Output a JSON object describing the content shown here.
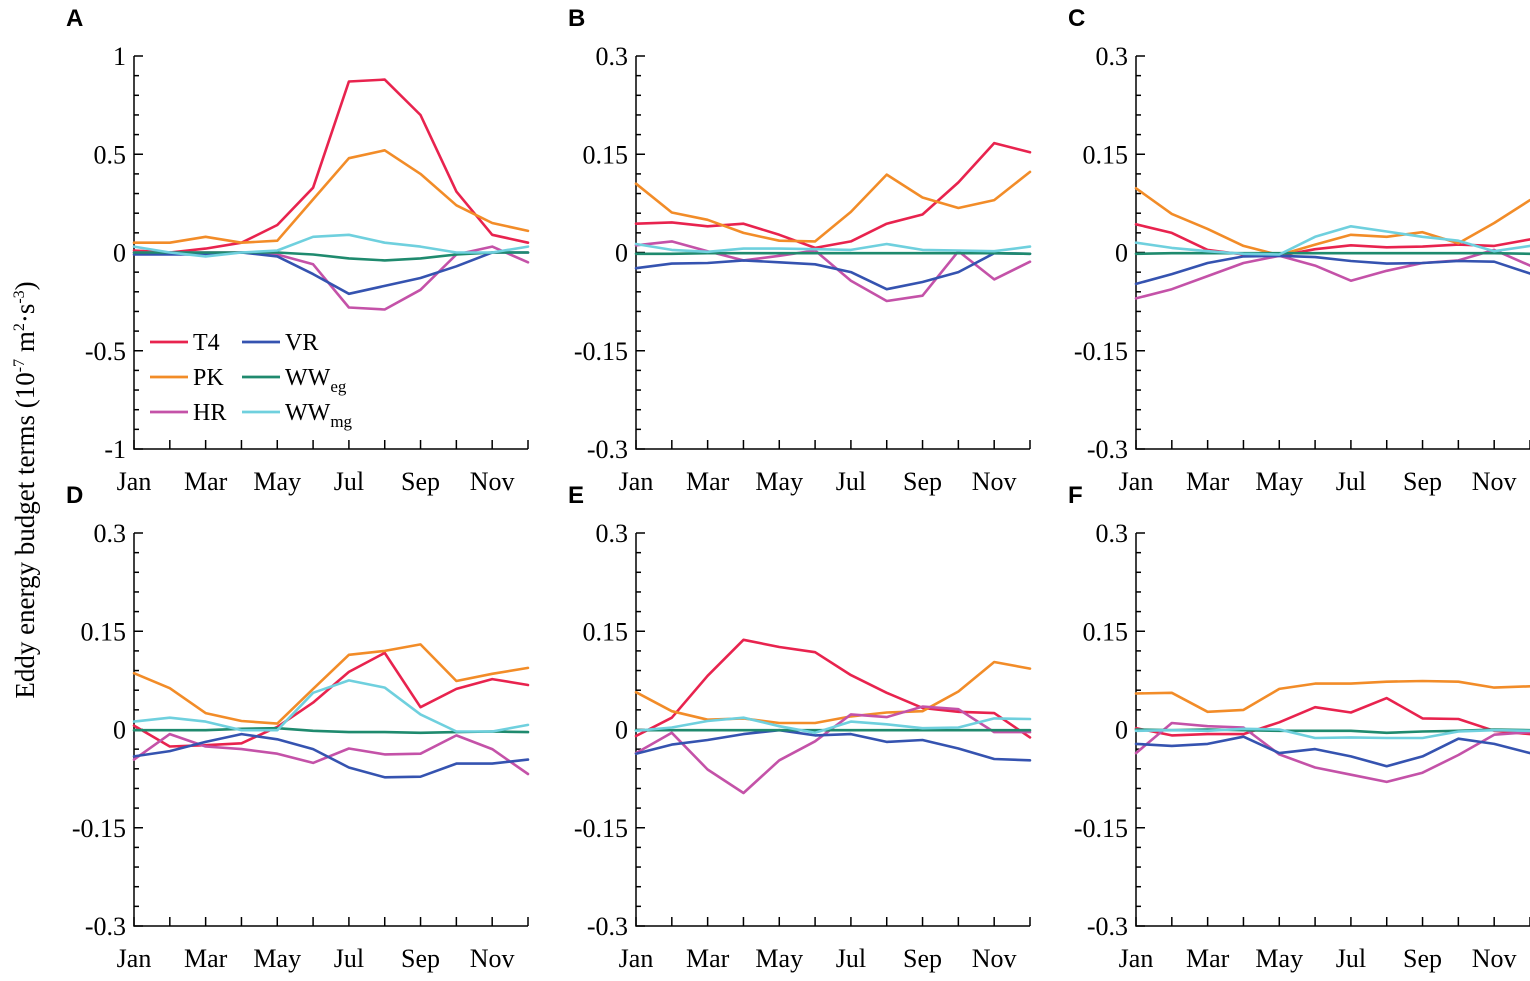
{
  "ylabel": "Eddy energy budget terms",
  "ylabel_unit": "(10-7 m2·s-3)",
  "ylabel_parts": {
    "prefix": "(10",
    "sup1": "-7",
    "mid": " m",
    "sup2": "2",
    "dot": "·s",
    "sup3": "-3",
    "suffix": ")"
  },
  "colors": {
    "T4": "#e8234e",
    "PK": "#f28c28",
    "HR": "#c452a8",
    "VR": "#3553b0",
    "WWeg": "#1f8a6e",
    "WWmg": "#6fd0de"
  },
  "legend": [
    {
      "key": "T4",
      "label": "T4",
      "sub": ""
    },
    {
      "key": "PK",
      "label": "PK",
      "sub": ""
    },
    {
      "key": "HR",
      "label": "HR",
      "sub": ""
    },
    {
      "key": "VR",
      "label": "VR",
      "sub": ""
    },
    {
      "key": "WWeg",
      "label": "WW",
      "sub": "eg"
    },
    {
      "key": "WWmg",
      "label": "WW",
      "sub": "mg"
    }
  ],
  "chart_data": [
    {
      "panel": "A",
      "type": "line",
      "x": [
        "Jan",
        "Feb",
        "Mar",
        "Apr",
        "May",
        "Jun",
        "Jul",
        "Aug",
        "Sep",
        "Oct",
        "Nov",
        "Dec"
      ],
      "xtick_labels": [
        "Jan",
        "Mar",
        "May",
        "Jul",
        "Sep",
        "Nov"
      ],
      "ylim": [
        -1,
        1
      ],
      "yticks": [
        "1",
        "0.5",
        "0",
        "-0.5",
        "-1"
      ],
      "series": [
        {
          "name": "T4",
          "values": [
            0.01,
            0.0,
            0.02,
            0.05,
            0.14,
            0.33,
            0.87,
            0.88,
            0.7,
            0.31,
            0.09,
            0.05
          ]
        },
        {
          "name": "PK",
          "values": [
            0.05,
            0.05,
            0.08,
            0.05,
            0.06,
            0.27,
            0.48,
            0.52,
            0.4,
            0.24,
            0.15,
            0.11
          ]
        },
        {
          "name": "HR",
          "values": [
            0.0,
            0.0,
            0.0,
            0.0,
            -0.01,
            -0.06,
            -0.28,
            -0.29,
            -0.19,
            -0.01,
            0.03,
            -0.05
          ]
        },
        {
          "name": "VR",
          "values": [
            -0.01,
            -0.01,
            -0.01,
            0.0,
            -0.02,
            -0.11,
            -0.21,
            -0.17,
            -0.13,
            -0.07,
            0.0,
            0.0
          ]
        },
        {
          "name": "WWeg",
          "values": [
            0.0,
            0.0,
            0.0,
            0.0,
            0.0,
            -0.01,
            -0.03,
            -0.04,
            -0.03,
            -0.01,
            0.0,
            0.0
          ]
        },
        {
          "name": "WWmg",
          "values": [
            0.03,
            0.0,
            -0.02,
            0.0,
            0.01,
            0.08,
            0.09,
            0.05,
            0.03,
            0.0,
            0.0,
            0.03
          ]
        }
      ]
    },
    {
      "panel": "B",
      "type": "line",
      "x": [
        "Jan",
        "Feb",
        "Mar",
        "Apr",
        "May",
        "Jun",
        "Jul",
        "Aug",
        "Sep",
        "Oct",
        "Nov",
        "Dec"
      ],
      "xtick_labels": [
        "Jan",
        "Mar",
        "May",
        "Jul",
        "Sep",
        "Nov"
      ],
      "ylim": [
        -0.3,
        0.3
      ],
      "yticks": [
        "0.3",
        "0.15",
        "0",
        "-0.15",
        "-0.3"
      ],
      "series": [
        {
          "name": "T4",
          "values": [
            0.044,
            0.046,
            0.04,
            0.044,
            0.027,
            0.007,
            0.017,
            0.044,
            0.058,
            0.107,
            0.167,
            0.153
          ]
        },
        {
          "name": "PK",
          "values": [
            0.105,
            0.061,
            0.05,
            0.03,
            0.018,
            0.017,
            0.062,
            0.119,
            0.084,
            0.068,
            0.08,
            0.123
          ]
        },
        {
          "name": "HR",
          "values": [
            0.011,
            0.017,
            0.002,
            -0.012,
            -0.005,
            0.003,
            -0.043,
            -0.074,
            -0.066,
            0.002,
            -0.041,
            -0.014
          ]
        },
        {
          "name": "VR",
          "values": [
            -0.024,
            -0.017,
            -0.016,
            -0.012,
            -0.015,
            -0.018,
            -0.03,
            -0.056,
            -0.045,
            -0.03,
            -0.001,
            -0.002
          ]
        },
        {
          "name": "WWeg",
          "values": [
            -0.002,
            -0.002,
            -0.001,
            -0.001,
            -0.001,
            -0.001,
            -0.001,
            -0.001,
            -0.001,
            -0.001,
            -0.001,
            -0.002
          ]
        },
        {
          "name": "WWmg",
          "values": [
            0.013,
            0.004,
            0.001,
            0.006,
            0.006,
            0.005,
            0.004,
            0.013,
            0.004,
            0.003,
            0.002,
            0.009
          ]
        }
      ]
    },
    {
      "panel": "C",
      "type": "line",
      "x": [
        "Jan",
        "Feb",
        "Mar",
        "Apr",
        "May",
        "Jun",
        "Jul",
        "Aug",
        "Sep",
        "Oct",
        "Nov",
        "Dec"
      ],
      "xtick_labels": [
        "Jan",
        "Mar",
        "May",
        "Jul",
        "Sep",
        "Nov"
      ],
      "ylim": [
        -0.3,
        0.3
      ],
      "yticks": [
        "0.3",
        "0.15",
        "0",
        "-0.15",
        "-0.3"
      ],
      "series": [
        {
          "name": "T4",
          "values": [
            0.043,
            0.03,
            0.004,
            -0.003,
            -0.005,
            0.005,
            0.011,
            0.008,
            0.009,
            0.012,
            0.01,
            0.02
          ]
        },
        {
          "name": "PK",
          "values": [
            0.098,
            0.059,
            0.036,
            0.01,
            -0.004,
            0.012,
            0.027,
            0.024,
            0.031,
            0.014,
            0.045,
            0.08
          ]
        },
        {
          "name": "HR",
          "values": [
            -0.07,
            -0.056,
            -0.036,
            -0.016,
            -0.005,
            -0.02,
            -0.043,
            -0.028,
            -0.016,
            -0.012,
            0.004,
            -0.02
          ]
        },
        {
          "name": "VR",
          "values": [
            -0.048,
            -0.033,
            -0.016,
            -0.006,
            -0.005,
            -0.007,
            -0.013,
            -0.017,
            -0.016,
            -0.013,
            -0.014,
            -0.032
          ]
        },
        {
          "name": "WWeg",
          "values": [
            -0.002,
            -0.001,
            -0.001,
            -0.001,
            -0.001,
            -0.001,
            -0.001,
            -0.001,
            -0.001,
            -0.001,
            -0.001,
            -0.002
          ]
        },
        {
          "name": "WWmg",
          "values": [
            0.015,
            0.007,
            0.002,
            -0.002,
            -0.003,
            0.024,
            0.04,
            0.032,
            0.024,
            0.018,
            0.002,
            0.01
          ]
        }
      ]
    },
    {
      "panel": "D",
      "type": "line",
      "x": [
        "Jan",
        "Feb",
        "Mar",
        "Apr",
        "May",
        "Jun",
        "Jul",
        "Aug",
        "Sep",
        "Oct",
        "Nov",
        "Dec"
      ],
      "xtick_labels": [
        "Jan",
        "Mar",
        "May",
        "Jul",
        "Sep",
        "Nov"
      ],
      "ylim": [
        -0.3,
        0.3
      ],
      "yticks": [
        "0.3",
        "0.15",
        "0",
        "-0.15",
        "-0.3"
      ],
      "series": [
        {
          "name": "T4",
          "values": [
            0.006,
            -0.026,
            -0.024,
            -0.021,
            0.004,
            0.041,
            0.088,
            0.117,
            0.034,
            0.062,
            0.077,
            0.068
          ]
        },
        {
          "name": "PK",
          "values": [
            0.086,
            0.063,
            0.025,
            0.013,
            0.009,
            0.062,
            0.114,
            0.12,
            0.13,
            0.074,
            0.085,
            0.094
          ]
        },
        {
          "name": "HR",
          "values": [
            -0.046,
            -0.007,
            -0.026,
            -0.03,
            -0.037,
            -0.051,
            -0.029,
            -0.038,
            -0.037,
            -0.009,
            -0.03,
            -0.068
          ]
        },
        {
          "name": "VR",
          "values": [
            -0.041,
            -0.033,
            -0.019,
            -0.007,
            -0.015,
            -0.03,
            -0.058,
            -0.073,
            -0.072,
            -0.052,
            -0.052,
            -0.046
          ]
        },
        {
          "name": "WWeg",
          "values": [
            -0.001,
            -0.001,
            -0.001,
            0.001,
            0.002,
            -0.002,
            -0.004,
            -0.004,
            -0.005,
            -0.004,
            -0.003,
            -0.004
          ]
        },
        {
          "name": "WWmg",
          "values": [
            0.012,
            0.018,
            0.012,
            -0.001,
            -0.001,
            0.056,
            0.075,
            0.064,
            0.023,
            -0.003,
            -0.003,
            0.007
          ]
        }
      ]
    },
    {
      "panel": "E",
      "type": "line",
      "x": [
        "Jan",
        "Feb",
        "Mar",
        "Apr",
        "May",
        "Jun",
        "Jul",
        "Aug",
        "Sep",
        "Oct",
        "Nov",
        "Dec"
      ],
      "xtick_labels": [
        "Jan",
        "Mar",
        "May",
        "Jul",
        "Sep",
        "Nov"
      ],
      "ylim": [
        -0.3,
        0.3
      ],
      "yticks": [
        "0.3",
        "0.15",
        "0",
        "-0.15",
        "-0.3"
      ],
      "series": [
        {
          "name": "T4",
          "values": [
            -0.01,
            0.018,
            0.082,
            0.137,
            0.126,
            0.118,
            0.083,
            0.056,
            0.033,
            0.027,
            0.025,
            -0.012
          ]
        },
        {
          "name": "PK",
          "values": [
            0.057,
            0.028,
            0.015,
            0.017,
            0.01,
            0.01,
            0.02,
            0.026,
            0.028,
            0.058,
            0.103,
            0.093
          ]
        },
        {
          "name": "HR",
          "values": [
            -0.036,
            -0.005,
            -0.061,
            -0.097,
            -0.047,
            -0.018,
            0.023,
            0.019,
            0.035,
            0.031,
            -0.004,
            -0.004
          ]
        },
        {
          "name": "VR",
          "values": [
            -0.037,
            -0.023,
            -0.016,
            -0.007,
            -0.001,
            -0.009,
            -0.007,
            -0.019,
            -0.016,
            -0.029,
            -0.045,
            -0.047
          ]
        },
        {
          "name": "WWeg",
          "values": [
            -0.001,
            -0.001,
            -0.001,
            -0.001,
            -0.001,
            -0.001,
            -0.001,
            -0.001,
            -0.001,
            -0.001,
            -0.001,
            -0.001
          ]
        },
        {
          "name": "WWmg",
          "values": [
            -0.002,
            0.003,
            0.013,
            0.018,
            0.005,
            -0.005,
            0.012,
            0.008,
            0.002,
            0.003,
            0.017,
            0.016
          ]
        }
      ]
    },
    {
      "panel": "F",
      "type": "line",
      "x": [
        "Jan",
        "Feb",
        "Mar",
        "Apr",
        "May",
        "Jun",
        "Jul",
        "Aug",
        "Sep",
        "Oct",
        "Nov",
        "Dec"
      ],
      "xtick_labels": [
        "Jan",
        "Mar",
        "May",
        "Jul",
        "Sep",
        "Nov"
      ],
      "ylim": [
        -0.3,
        0.3
      ],
      "yticks": [
        "0.3",
        "0.15",
        "0",
        "-0.15",
        "-0.3"
      ],
      "series": [
        {
          "name": "T4",
          "values": [
            0.002,
            -0.009,
            -0.007,
            -0.007,
            0.011,
            0.034,
            0.026,
            0.048,
            0.017,
            0.016,
            -0.002,
            -0.007
          ]
        },
        {
          "name": "PK",
          "values": [
            0.055,
            0.056,
            0.027,
            0.03,
            0.062,
            0.07,
            0.07,
            0.073,
            0.074,
            0.073,
            0.064,
            0.066
          ]
        },
        {
          "name": "HR",
          "values": [
            -0.036,
            0.01,
            0.005,
            0.003,
            -0.038,
            -0.058,
            -0.069,
            -0.08,
            -0.066,
            -0.039,
            -0.008,
            -0.004
          ]
        },
        {
          "name": "VR",
          "values": [
            -0.022,
            -0.025,
            -0.022,
            -0.011,
            -0.036,
            -0.03,
            -0.041,
            -0.056,
            -0.041,
            -0.014,
            -0.022,
            -0.036
          ]
        },
        {
          "name": "WWeg",
          "values": [
            0.0,
            -0.001,
            0.0,
            -0.001,
            -0.002,
            -0.002,
            -0.002,
            -0.005,
            -0.003,
            -0.002,
            0.0,
            -0.001
          ]
        },
        {
          "name": "WWmg",
          "values": [
            -0.002,
            -0.001,
            -0.002,
            0.001,
            0.0,
            -0.013,
            -0.012,
            -0.013,
            -0.013,
            -0.003,
            -0.001,
            -0.002
          ]
        }
      ]
    }
  ]
}
